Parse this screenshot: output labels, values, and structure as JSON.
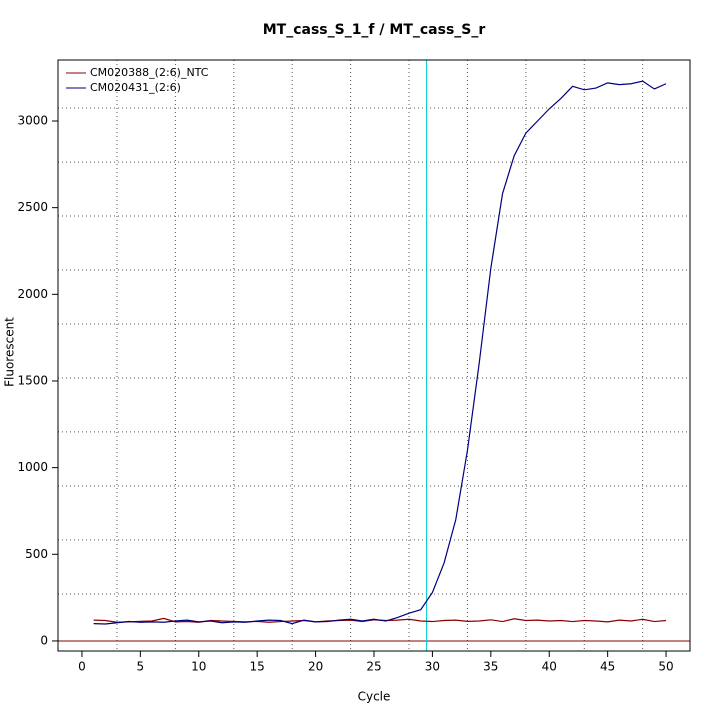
{
  "chart_data": {
    "type": "line",
    "title": "MT_cass_S_1_f / MT_cass_S_r",
    "xlabel": "Cycle",
    "ylabel": "Fluorescent",
    "x": [
      1,
      2,
      3,
      4,
      5,
      6,
      7,
      8,
      9,
      10,
      11,
      12,
      13,
      14,
      15,
      16,
      17,
      18,
      19,
      20,
      21,
      22,
      23,
      24,
      25,
      26,
      27,
      28,
      29,
      30,
      31,
      32,
      33,
      34,
      35,
      36,
      37,
      38,
      39,
      40,
      41,
      42,
      43,
      44,
      45,
      46,
      47,
      48,
      49,
      50
    ],
    "series": [
      {
        "name": "CM020388_(2:6)_NTC",
        "color": "#8b0000",
        "values": [
          120,
          118,
          108,
          110,
          113,
          115,
          130,
          110,
          112,
          108,
          118,
          115,
          112,
          110,
          113,
          108,
          112,
          115,
          118,
          110,
          115,
          118,
          120,
          112,
          122,
          118,
          120,
          125,
          115,
          112,
          118,
          120,
          113,
          115,
          122,
          112,
          128,
          118,
          120,
          115,
          118,
          112,
          118,
          115,
          110,
          120,
          115,
          125,
          112,
          118
        ]
      },
      {
        "name": "CM020431_(2:6)",
        "color": "#000080",
        "values": [
          100,
          98,
          105,
          112,
          108,
          110,
          108,
          115,
          120,
          110,
          115,
          105,
          110,
          108,
          115,
          120,
          118,
          100,
          120,
          110,
          112,
          120,
          125,
          115,
          125,
          115,
          135,
          160,
          180,
          280,
          450,
          700,
          1100,
          1600,
          2150,
          2580,
          2800,
          2930,
          3000,
          3070,
          3130,
          3200,
          3180,
          3190,
          3220,
          3210,
          3215,
          3230,
          3185,
          3215
        ]
      }
    ],
    "xlim": [
      -2.05,
      52.05
    ],
    "ylim": [
      -58,
      3352
    ],
    "xticks": [
      0,
      5,
      10,
      15,
      20,
      25,
      30,
      35,
      40,
      45,
      50
    ],
    "yticks": [
      0,
      500,
      1000,
      1500,
      2000,
      2500,
      3000
    ],
    "grid": true,
    "xgrid": [
      3,
      8,
      13,
      18,
      23,
      28,
      33,
      38,
      43,
      48
    ],
    "ygrid": [
      271,
      583,
      894,
      1206,
      1517,
      1829,
      2140,
      2452,
      2763,
      3075
    ],
    "vline": {
      "value": 29.5,
      "color": "#00cccc"
    },
    "hline": {
      "value": 0,
      "color": "#8b0000"
    },
    "legend": "topleft"
  }
}
